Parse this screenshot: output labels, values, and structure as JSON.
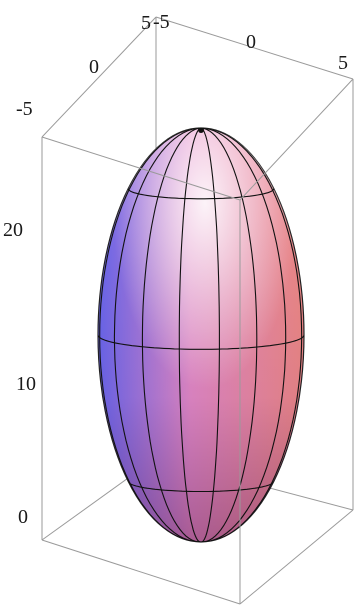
{
  "chart_data": {
    "type": "surface3d",
    "surface": "ellipsoid",
    "x_ticks": [
      "-5",
      "0",
      "5"
    ],
    "y_ticks": [
      "-5",
      "0",
      "5"
    ],
    "z_ticks": [
      "0",
      "10",
      "20"
    ],
    "xlim": [
      -5,
      5
    ],
    "ylim": [
      -5,
      5
    ],
    "zlim": [
      0,
      26
    ],
    "center": [
      0,
      0,
      13
    ],
    "semi_axes": [
      5,
      5,
      13
    ],
    "mesh": {
      "meridians": 16,
      "parallels": 3
    },
    "box": true,
    "colors": {
      "shade_blue": "#6a68f0",
      "shade_pink": "#e58cc8",
      "shade_salmon": "#f08a86",
      "highlight": "#f4f0ff",
      "mesh": "#111111",
      "box": "#9a9a9a"
    }
  }
}
